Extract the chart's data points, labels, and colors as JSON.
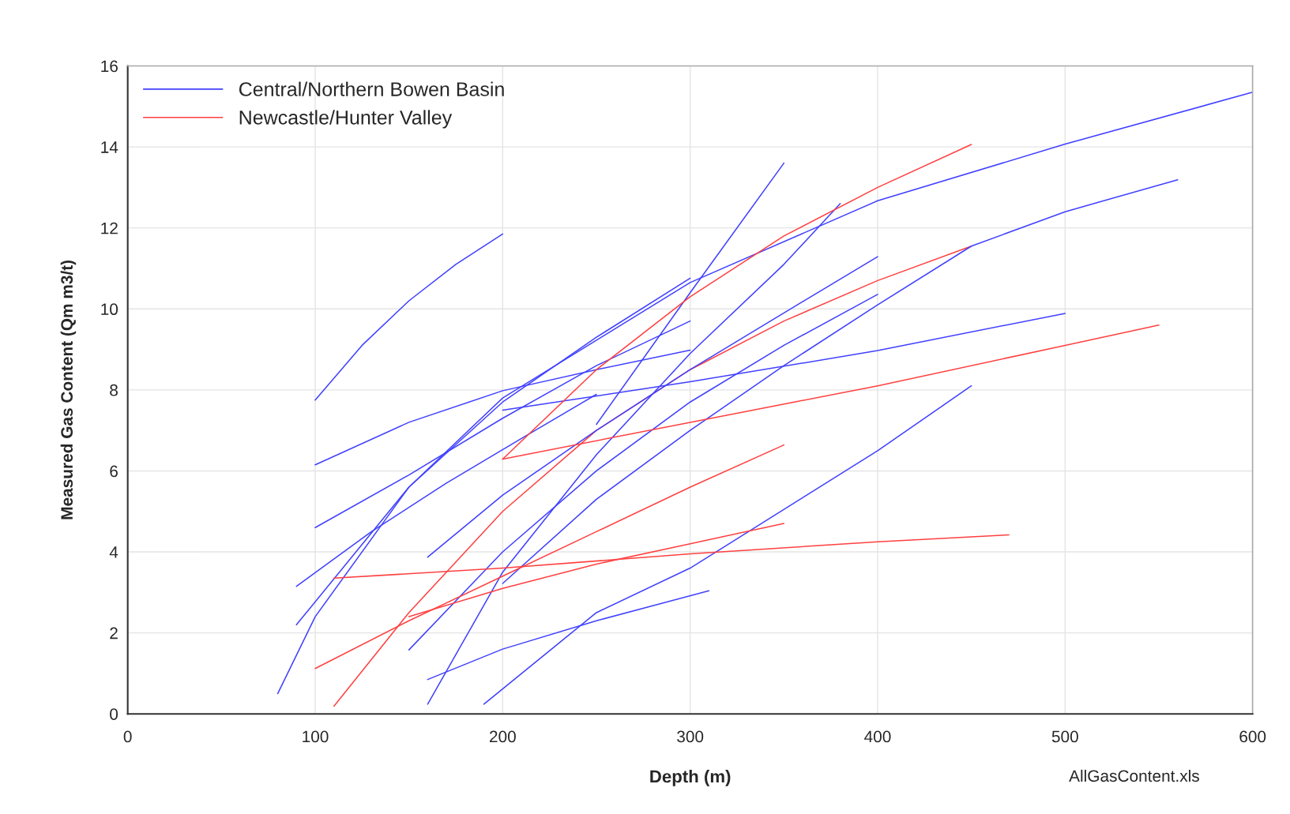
{
  "chart_data": {
    "type": "line",
    "xlabel": "Depth (m)",
    "ylabel": "Measured Gas Content (Qm m3/t)",
    "xlim": [
      0,
      600
    ],
    "xticks": [
      0,
      100,
      200,
      300,
      400,
      500,
      600
    ],
    "ylim": [
      0,
      16
    ],
    "yticks": [
      0,
      2,
      4,
      6,
      8,
      10,
      12,
      14,
      16
    ],
    "grid": true,
    "legend": "top left",
    "marker": "none",
    "line_style": "solid",
    "annotations": [
      "AllGasContent.xls"
    ],
    "series": [
      {
        "name": "Central/Northern Bowen Basin",
        "color": "#4040ff",
        "x": [
          80,
          100,
          150,
          200,
          300,
          400,
          500,
          600
        ],
        "values": [
          0.5,
          2.4,
          5.6,
          7.8,
          10.65,
          12.67,
          14.07,
          15.35
        ]
      },
      {
        "name": "Newcastle/Hunter Valley",
        "color": "#ff4040",
        "x": [
          110,
          150,
          200,
          250,
          300,
          350,
          400,
          450
        ],
        "values": [
          0.19,
          2.5,
          5.0,
          7.0,
          8.5,
          9.7,
          10.7,
          11.55
        ]
      },
      {
        "color": "#4040ff",
        "x": [
          100,
          125,
          150,
          175,
          200
        ],
        "values": [
          7.75,
          9.1,
          10.2,
          11.1,
          11.85
        ]
      },
      {
        "color": "#4040ff",
        "x": [
          100,
          150,
          200,
          250,
          300
        ],
        "values": [
          6.15,
          7.2,
          7.98,
          8.5,
          8.98
        ]
      },
      {
        "color": "#4040ff",
        "x": [
          200,
          300,
          400,
          500
        ],
        "values": [
          7.5,
          8.2,
          8.97,
          9.89
        ]
      },
      {
        "color": "#4040ff",
        "x": [
          100,
          150,
          200,
          250,
          300
        ],
        "values": [
          4.6,
          5.9,
          7.3,
          8.6,
          9.7
        ]
      },
      {
        "color": "#4040ff",
        "x": [
          90,
          130,
          170,
          210,
          250
        ],
        "values": [
          3.15,
          4.5,
          5.7,
          6.8,
          7.89
        ]
      },
      {
        "color": "#4040ff",
        "x": [
          90,
          150,
          200,
          250,
          300
        ],
        "values": [
          2.2,
          5.6,
          7.7,
          9.3,
          10.76
        ]
      },
      {
        "color": "#4040ff",
        "x": [
          150,
          200,
          250,
          300,
          350,
          400
        ],
        "values": [
          1.58,
          4.0,
          6.0,
          7.7,
          9.1,
          10.36
        ]
      },
      {
        "color": "#4040ff",
        "x": [
          160,
          200,
          250,
          300,
          350,
          400
        ],
        "values": [
          3.87,
          5.4,
          7.0,
          8.5,
          9.9,
          11.29
        ]
      },
      {
        "color": "#4040ff",
        "x": [
          160,
          200,
          250,
          300,
          350,
          380
        ],
        "values": [
          0.24,
          3.5,
          6.4,
          8.9,
          11.1,
          12.6
        ]
      },
      {
        "color": "#4040ff",
        "x": [
          250,
          300,
          350
        ],
        "values": [
          7.15,
          10.4,
          13.6
        ]
      },
      {
        "color": "#4040ff",
        "x": [
          200,
          250,
          300,
          350,
          400,
          450,
          500,
          560
        ],
        "values": [
          3.22,
          5.3,
          7.0,
          8.6,
          10.1,
          11.55,
          12.4,
          13.19
        ]
      },
      {
        "color": "#4040ff",
        "x": [
          190,
          250,
          300,
          400,
          450
        ],
        "values": [
          0.24,
          2.5,
          3.6,
          6.5,
          8.1
        ]
      },
      {
        "color": "#4040ff",
        "x": [
          160,
          200,
          250,
          310
        ],
        "values": [
          0.85,
          1.6,
          2.3,
          3.04
        ]
      },
      {
        "color": "#ff4040",
        "x": [
          200,
          250,
          300,
          350,
          400,
          450
        ],
        "values": [
          6.29,
          8.5,
          10.3,
          11.8,
          13.0,
          14.06
        ]
      },
      {
        "color": "#ff4040",
        "x": [
          200,
          300,
          400,
          500,
          550
        ],
        "values": [
          6.29,
          7.2,
          8.1,
          9.1,
          9.6
        ]
      },
      {
        "color": "#ff4040",
        "x": [
          100,
          150,
          200,
          250,
          300,
          350
        ],
        "values": [
          1.12,
          2.3,
          3.4,
          4.5,
          5.6,
          6.64
        ]
      },
      {
        "color": "#ff4040",
        "x": [
          150,
          200,
          250,
          300,
          350
        ],
        "values": [
          2.4,
          3.1,
          3.7,
          4.2,
          4.7
        ]
      },
      {
        "color": "#ff4040",
        "x": [
          110,
          200,
          300,
          400,
          470
        ],
        "values": [
          3.35,
          3.6,
          3.95,
          4.25,
          4.42
        ]
      }
    ]
  }
}
